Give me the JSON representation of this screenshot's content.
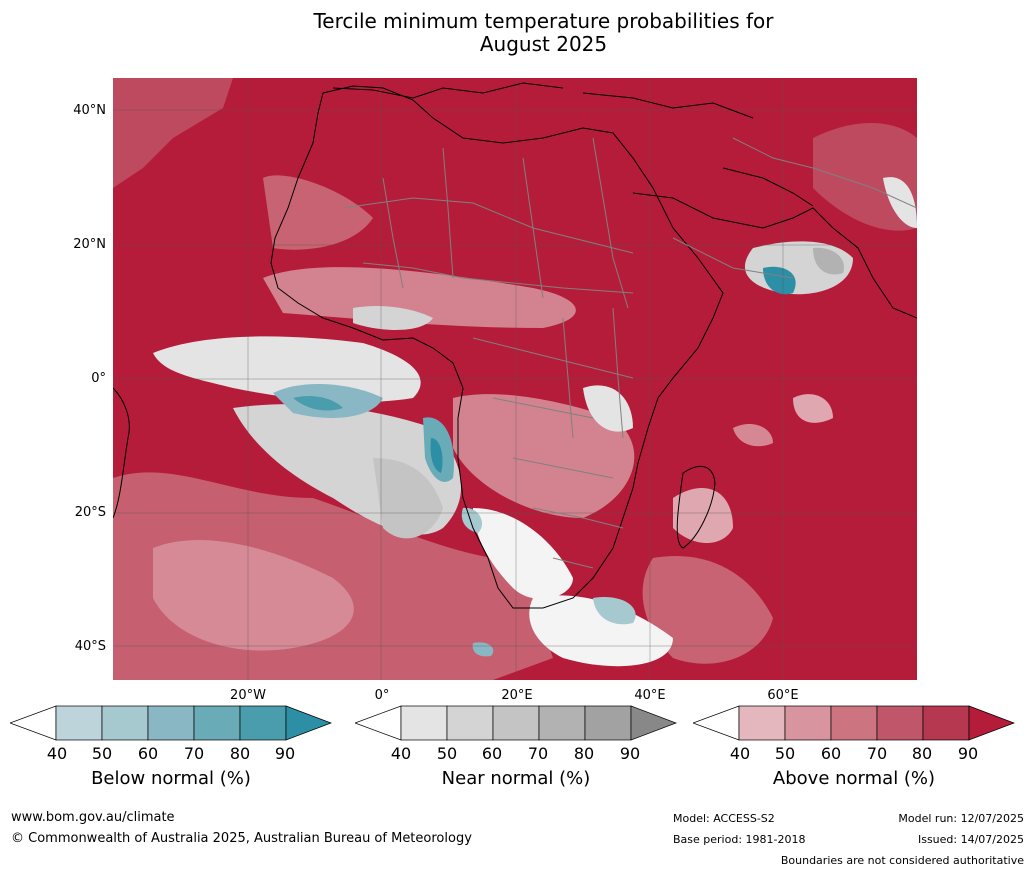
{
  "title_line1": "Tercile minimum temperature probabilities for",
  "title_line2": "August 2025",
  "map": {
    "lat_labels": [
      "40°N",
      "20°N",
      "0°",
      "20°S",
      "40°S"
    ],
    "lon_labels": [
      "20°W",
      "0°",
      "20°E",
      "40°E",
      "60°E"
    ],
    "colors": {
      "ocean_base": "#b51c3a",
      "land_base": "#b51c3a",
      "coast": "#000000",
      "borders": "#808080",
      "graticule": "#555555"
    }
  },
  "colorbars": [
    {
      "title": "Below normal (%)",
      "ticks": [
        "40",
        "50",
        "60",
        "70",
        "80",
        "90"
      ],
      "colors": [
        "#ffffff",
        "#bdd4da",
        "#a6c8cf",
        "#89b8c4",
        "#6aabb8",
        "#4a9dad",
        "#2c8fa6"
      ]
    },
    {
      "title": "Near normal (%)",
      "ticks": [
        "40",
        "50",
        "60",
        "70",
        "80",
        "90"
      ],
      "colors": [
        "#ffffff",
        "#e4e4e4",
        "#d4d4d4",
        "#c4c4c4",
        "#b2b2b2",
        "#a2a2a2",
        "#888888"
      ]
    },
    {
      "title": "Above normal (%)",
      "ticks": [
        "40",
        "50",
        "60",
        "70",
        "80",
        "90"
      ],
      "colors": [
        "#ffffff",
        "#e3b7bd",
        "#d8959f",
        "#cc7581",
        "#c0566a",
        "#b53750",
        "#b51c3a"
      ]
    }
  ],
  "footer": {
    "website": "www.bom.gov.au/climate",
    "copyright": "© Commonwealth of Australia 2025, Australian Bureau of Meteorology",
    "model": "Model: ACCESS-S2",
    "base_period": "Base period: 1981-2018",
    "model_run": "Model run: 12/07/2025",
    "issued": "Issued: 14/07/2025",
    "disclaimer": "Boundaries are not considered authoritative"
  }
}
